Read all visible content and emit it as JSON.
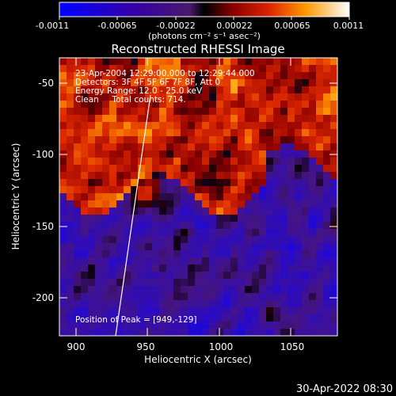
{
  "colorbar": {
    "tick_labels": [
      "-0.0011",
      "-0.00065",
      "-0.00022",
      "0.00022",
      "0.00065",
      "0.0011"
    ],
    "unit_label": "(photons cm⁻² s⁻¹ asec⁻²)",
    "range": [
      -0.0011,
      0.0011
    ]
  },
  "plot": {
    "title": "Reconstructed RHESSI Image",
    "xlabel": "Heliocentric X (arcsec)",
    "ylabel": "Heliocentric Y (arcsec)",
    "xticks": [
      "900",
      "950",
      "1000",
      "1050"
    ],
    "yticks": [
      "-50",
      "-100",
      "-150",
      "-200"
    ],
    "xlim": [
      888,
      1082
    ],
    "ylim": [
      -226,
      -32
    ]
  },
  "annotations": {
    "time_range": "23-Apr-2004 12:29:00.000 to 12:29:44.000",
    "detectors": "Detectors: 3F 4F 5F 6F 7F 8F, Att 0",
    "energy": "Energy Range: 12.0 - 25.0 keV",
    "clean": "Clean     Total counts: 714.",
    "peak": "Position of Peak = [949,-129]"
  },
  "footer": {
    "date": "30-Apr-2022 08:30"
  }
}
